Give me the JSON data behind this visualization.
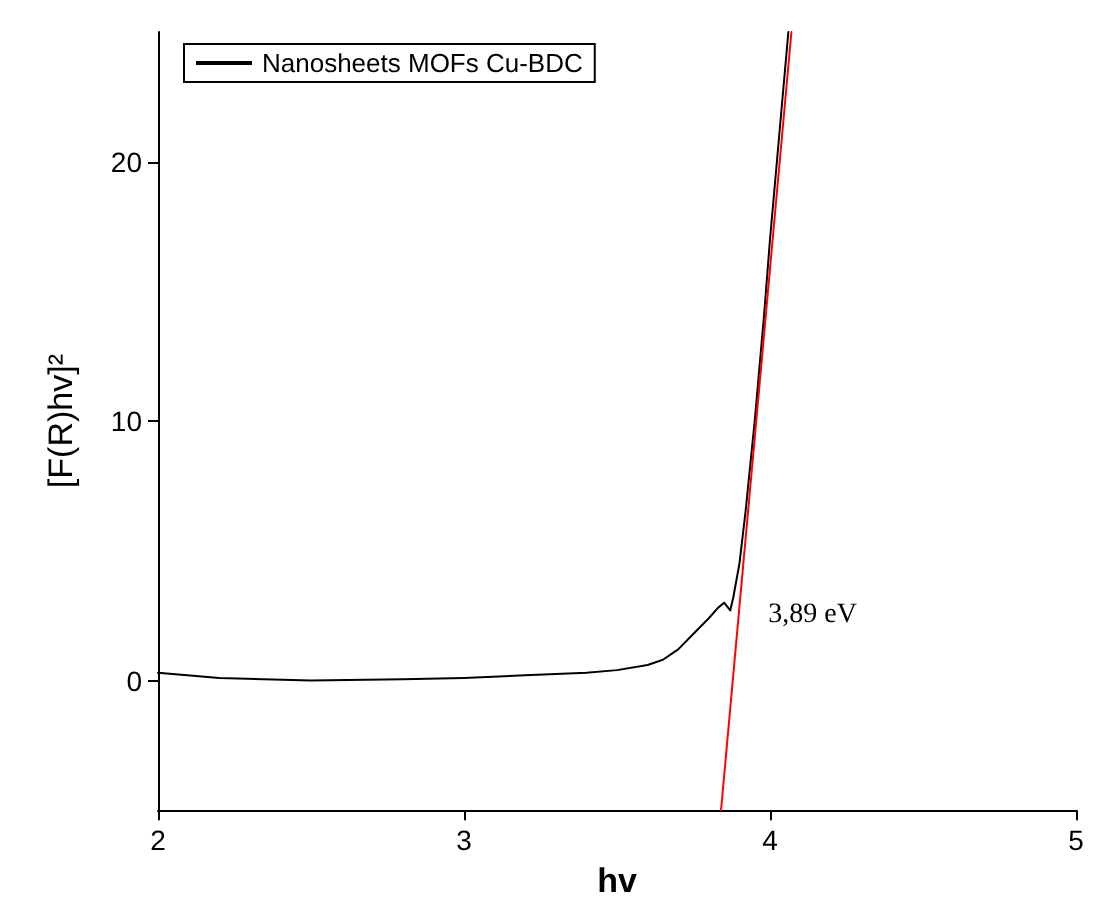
{
  "chart_data": {
    "type": "line",
    "xlabel": "hv",
    "ylabel": "[F(R)hv]²",
    "xlim": [
      2,
      5
    ],
    "xticks": [
      2,
      3,
      4,
      5
    ],
    "ylim": [
      -5,
      25
    ],
    "yticks": [
      0,
      10,
      20
    ],
    "series": [
      {
        "name": "Nanosheets MOFs Cu-BDC",
        "color": "#000000",
        "x": [
          2,
          2.2,
          2.5,
          2.8,
          3,
          3.2,
          3.4,
          3.5,
          3.6,
          3.65,
          3.7,
          3.75,
          3.8,
          3.83,
          3.85,
          3.87,
          3.88,
          3.9,
          3.92,
          3.95,
          3.98,
          4,
          4.03,
          4.06
        ],
        "values": [
          0.3,
          0.1,
          0,
          0.05,
          0.1,
          0.2,
          0.3,
          0.4,
          0.6,
          0.8,
          1.2,
          1.8,
          2.4,
          2.8,
          3,
          2.7,
          3.2,
          4.5,
          6.5,
          10,
          14,
          17,
          21,
          25
        ]
      },
      {
        "color": "#ff0000",
        "x": [
          3.84,
          4.07
        ],
        "values": [
          -5,
          25
        ]
      }
    ],
    "annotations": [
      {
        "text": "3,89 eV",
        "x": 3.89,
        "y": 0
      }
    ],
    "legend": "top left",
    "grid": false,
    "marker": "none",
    "line_style": "solid"
  }
}
